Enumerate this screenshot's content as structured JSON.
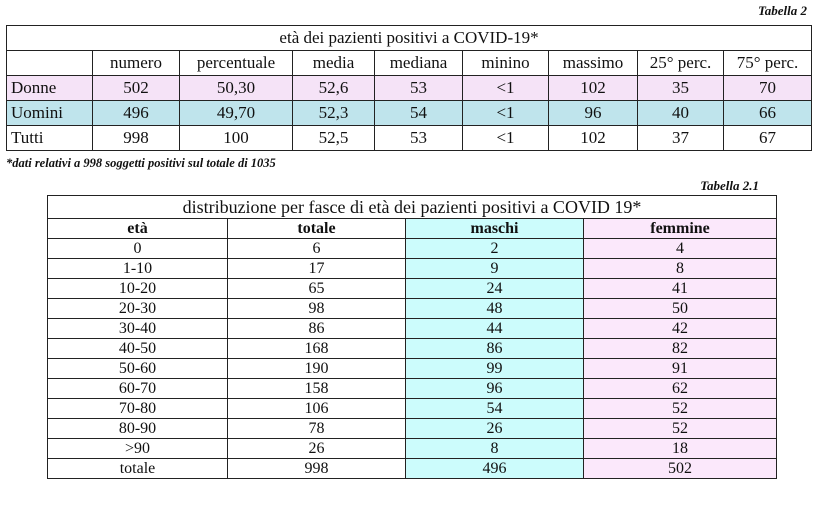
{
  "table1": {
    "caption": "Tabella 2",
    "title": "età dei pazienti positivi a COVID-19*",
    "headers": [
      "",
      "numero",
      "percentuale",
      "media",
      "mediana",
      "minino",
      "massimo",
      "25° perc.",
      "75° perc."
    ],
    "rows": [
      {
        "label": "Donne",
        "values": [
          "502",
          "50,30",
          "52,6",
          "53",
          "<1",
          "102",
          "35",
          "70"
        ]
      },
      {
        "label": "Uomini",
        "values": [
          "496",
          "49,70",
          "52,3",
          "54",
          "<1",
          "96",
          "40",
          "66"
        ]
      },
      {
        "label": "Tutti",
        "values": [
          "998",
          "100",
          "52,5",
          "53",
          "<1",
          "102",
          "37",
          "67"
        ]
      }
    ],
    "footnote": "*dati relativi a 998 soggetti positivi sul totale di 1035",
    "colors": {
      "donne_row": "#f5e3f7",
      "uomini_row": "#bfe4ec"
    }
  },
  "table2": {
    "caption": "Tabella 2.1",
    "title": "distribuzione per fasce di età dei pazienti positivi a COVID 19*",
    "headers": [
      "età",
      "totale",
      "maschi",
      "femmine"
    ],
    "rows": [
      [
        "0",
        "6",
        "2",
        "4"
      ],
      [
        "1-10",
        "17",
        "9",
        "8"
      ],
      [
        "10-20",
        "65",
        "24",
        "41"
      ],
      [
        "20-30",
        "98",
        "48",
        "50"
      ],
      [
        "30-40",
        "86",
        "44",
        "42"
      ],
      [
        "40-50",
        "168",
        "86",
        "82"
      ],
      [
        "50-60",
        "190",
        "99",
        "91"
      ],
      [
        "60-70",
        "158",
        "96",
        "62"
      ],
      [
        "70-80",
        "106",
        "54",
        "52"
      ],
      [
        "80-90",
        "78",
        "26",
        "52"
      ],
      [
        ">90",
        "26",
        "8",
        "18"
      ],
      [
        "totale",
        "998",
        "496",
        "502"
      ]
    ],
    "colors": {
      "maschi_col": "#ccfcfc",
      "femmine_col": "#fbe8fb"
    }
  }
}
